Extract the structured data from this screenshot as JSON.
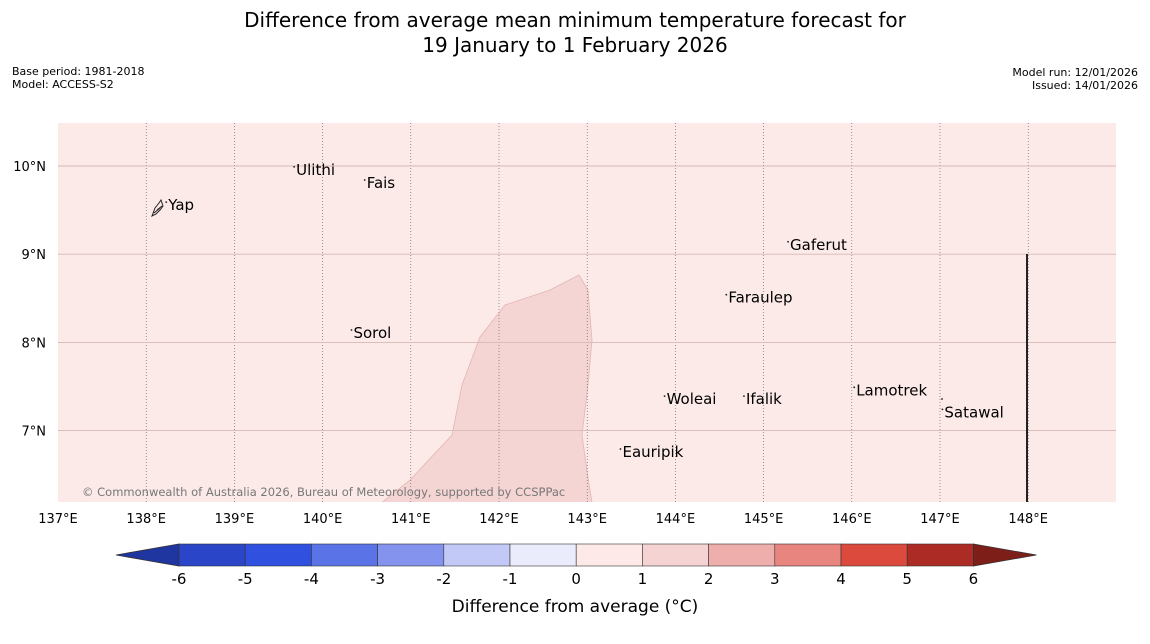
{
  "title": {
    "line1": "Difference from average mean minimum temperature forecast for",
    "line2": "19 January to 1 February 2026"
  },
  "meta": {
    "base_period": "Base period: 1981-2018",
    "model": "Model: ACCESS-S2",
    "model_run": "Model run: 12/01/2026",
    "issued": "Issued: 14/01/2026"
  },
  "map": {
    "lon_range": [
      137,
      149
    ],
    "lat_range": [
      6.2,
      10.5
    ],
    "lon_ticks": [
      "137°E",
      "138°E",
      "139°E",
      "140°E",
      "141°E",
      "142°E",
      "143°E",
      "144°E",
      "145°E",
      "146°E",
      "147°E",
      "148°E"
    ],
    "lat_ticks": [
      "10°N",
      "9°N",
      "8°N",
      "7°N"
    ],
    "background_category": "0 to 1",
    "anomaly_region_category": "1 to 2",
    "places": [
      {
        "name": "Yap",
        "lon": 138.25,
        "lat": 9.5
      },
      {
        "name": "Ulithi",
        "lon": 139.7,
        "lat": 9.9
      },
      {
        "name": "Fais",
        "lon": 140.5,
        "lat": 9.75
      },
      {
        "name": "Sorol",
        "lon": 140.35,
        "lat": 8.05
      },
      {
        "name": "Gaferut",
        "lon": 145.3,
        "lat": 9.05
      },
      {
        "name": "Faraulep",
        "lon": 144.6,
        "lat": 8.45
      },
      {
        "name": "Woleai",
        "lon": 143.9,
        "lat": 7.3
      },
      {
        "name": "Ifalik",
        "lon": 144.8,
        "lat": 7.3
      },
      {
        "name": "Lamotrek",
        "lon": 146.05,
        "lat": 7.4
      },
      {
        "name": "Satawal",
        "lon": 147.05,
        "lat": 7.15
      },
      {
        "name": "Eauripik",
        "lon": 143.4,
        "lat": 6.7
      }
    ],
    "copyright": "© Commonwealth of Australia 2026, Bureau of Meteorology, supported by CCSPPac"
  },
  "colorbar": {
    "label": "Difference from average (°C)",
    "ticks": [
      "-6",
      "-5",
      "-4",
      "-3",
      "-2",
      "-1",
      "0",
      "1",
      "2",
      "3",
      "4",
      "5",
      "6"
    ],
    "colors": [
      "#1f35a0",
      "#2a45c8",
      "#3050e0",
      "#5a74e8",
      "#8494ee",
      "#c2c9f6",
      "#eaecfb",
      "#fce9e8",
      "#f5d3d2",
      "#eeaeab",
      "#e8857f",
      "#dc4a3d",
      "#ac2b24",
      "#7e1e18"
    ]
  }
}
